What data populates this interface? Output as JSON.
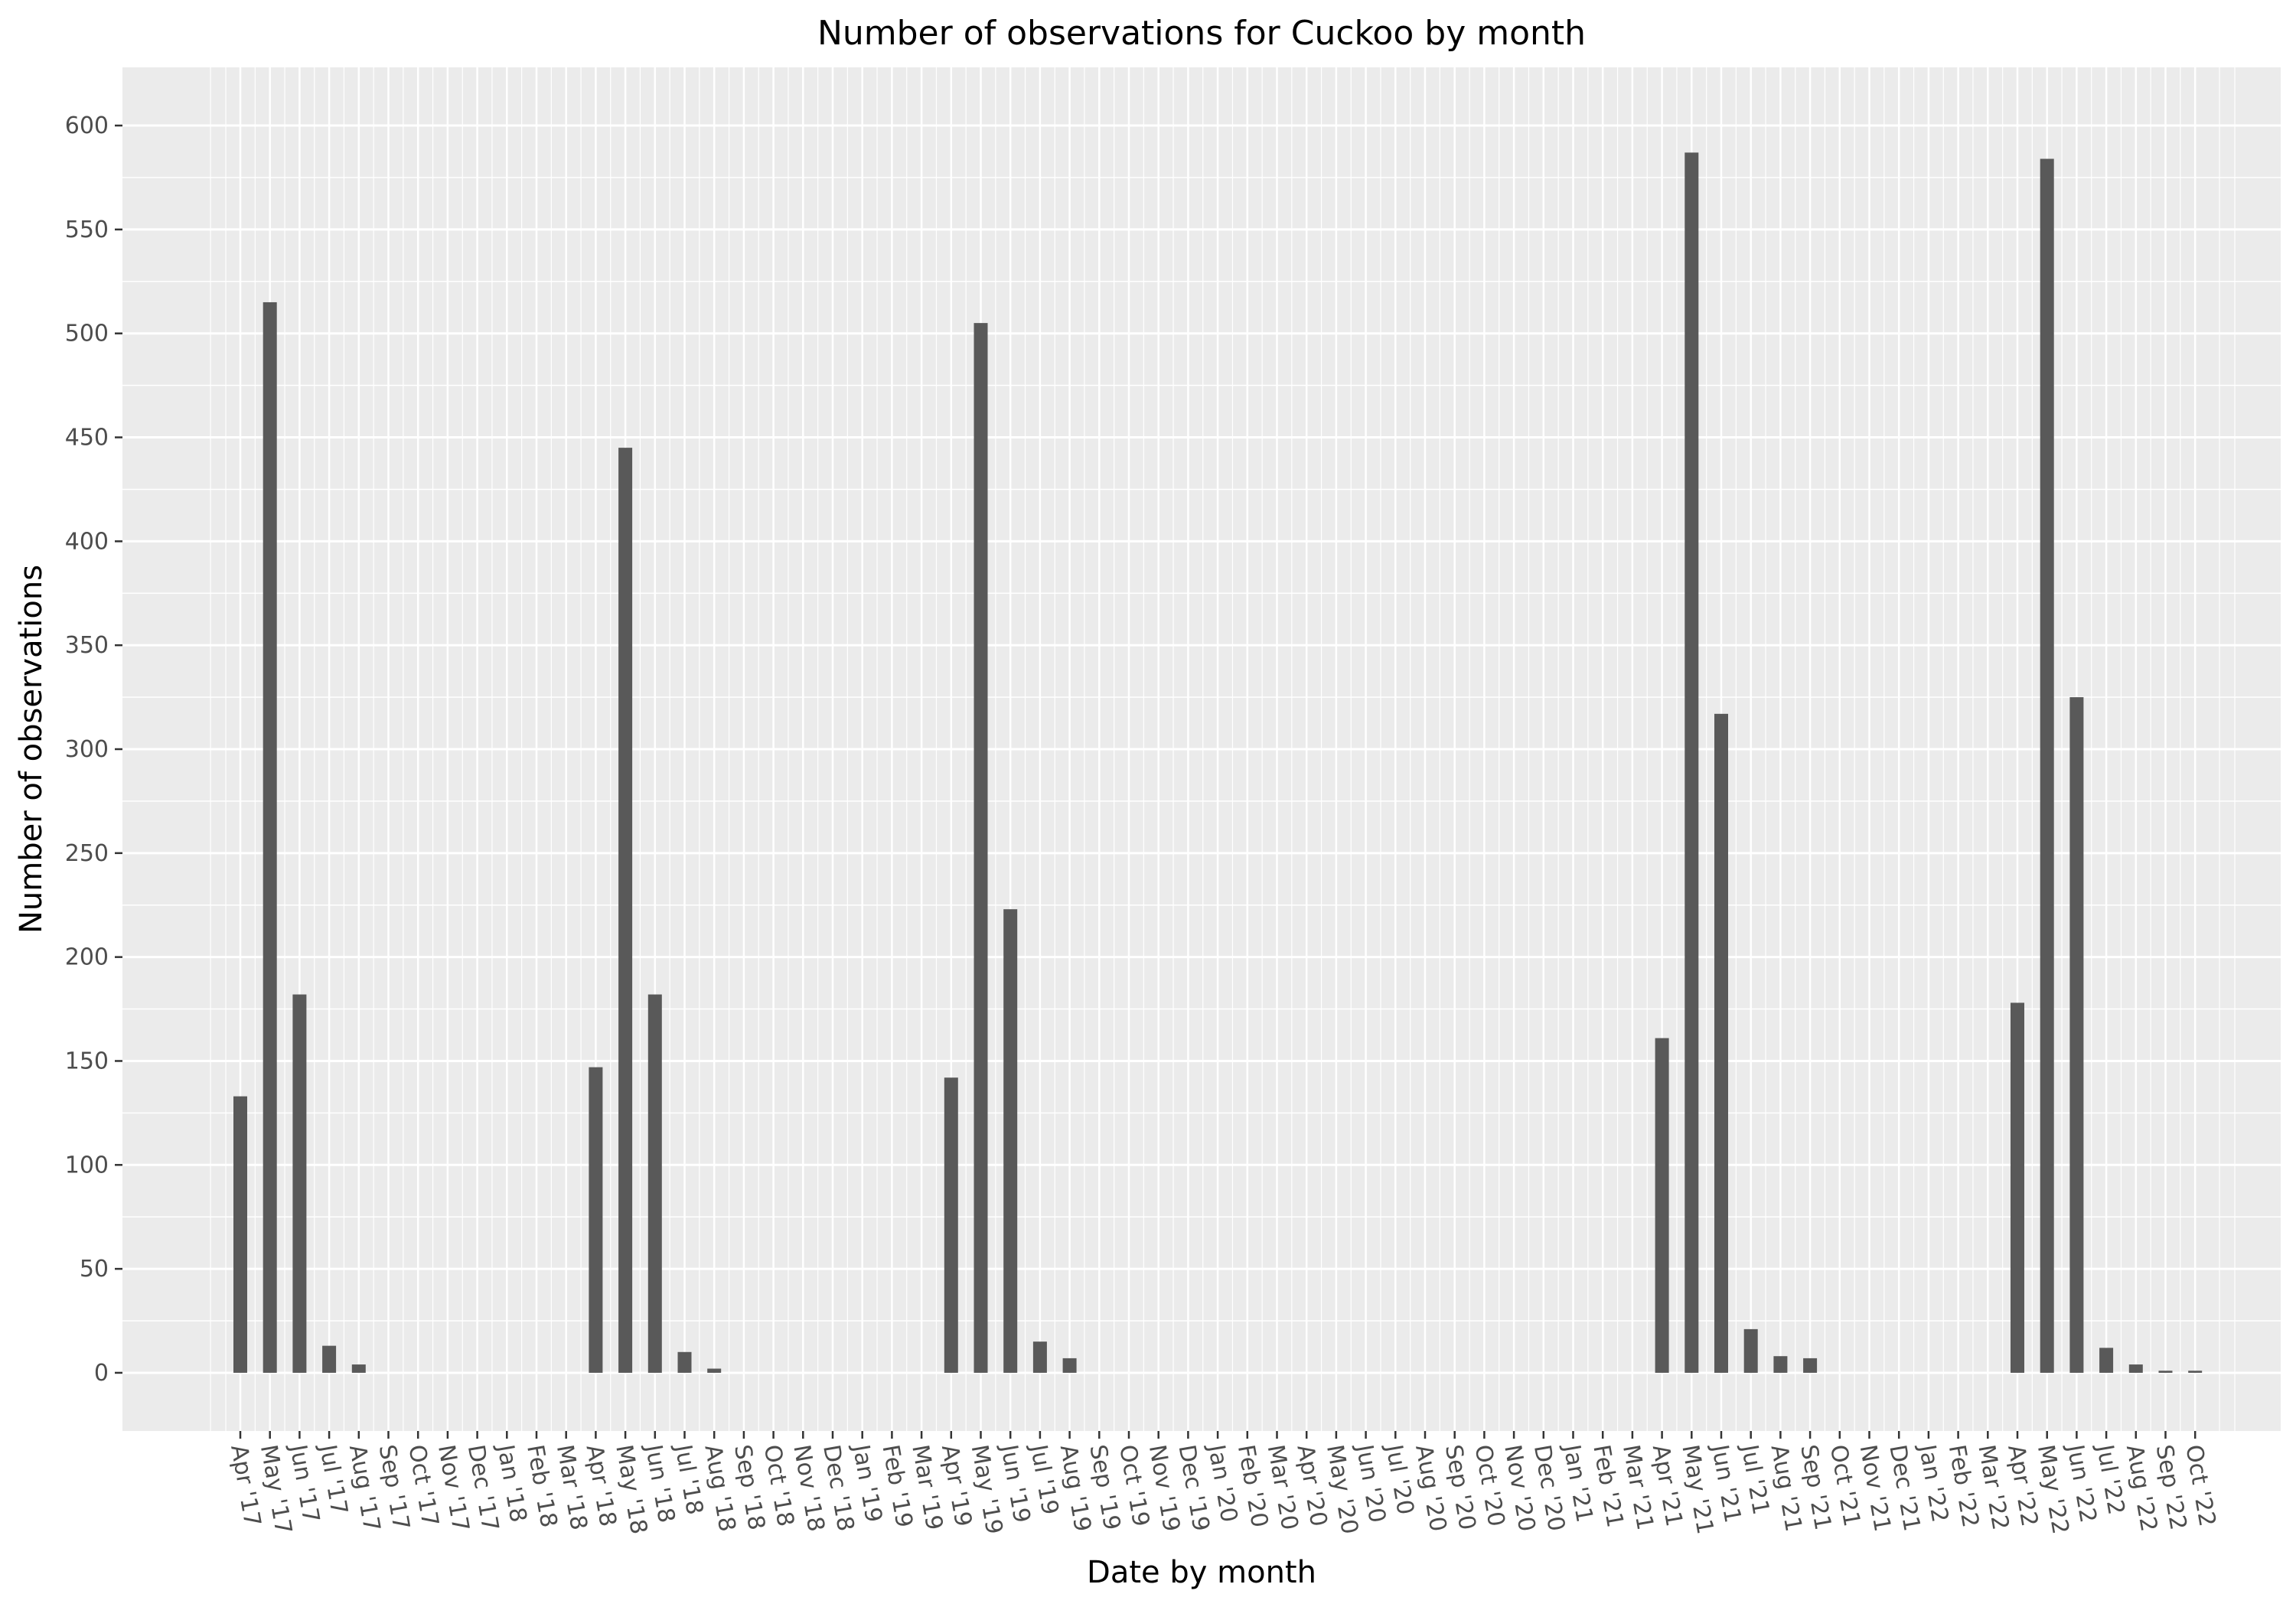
{
  "chart_data": {
    "type": "bar",
    "title": "Number of observations for Cuckoo by month",
    "xlabel": "Date by month",
    "ylabel": "Number of observations",
    "ylim": [
      -28,
      628
    ],
    "yticks": [
      0,
      50,
      100,
      150,
      200,
      250,
      300,
      350,
      400,
      450,
      500,
      550,
      600
    ],
    "grid": true,
    "legend": "none",
    "colors": {
      "bar": "#595959",
      "panel": "#ebebeb",
      "grid": "#ffffff"
    },
    "categories": [
      "Apr '17",
      "May '17",
      "Jun '17",
      "Jul '17",
      "Aug '17",
      "Sep '17",
      "Oct '17",
      "Nov '17",
      "Dec '17",
      "Jan '18",
      "Feb '18",
      "Mar '18",
      "Apr '18",
      "May '18",
      "Jun '18",
      "Jul '18",
      "Aug '18",
      "Sep '18",
      "Oct '18",
      "Nov '18",
      "Dec '18",
      "Jan '19",
      "Feb '19",
      "Mar '19",
      "Apr '19",
      "May '19",
      "Jun '19",
      "Jul '19",
      "Aug '19",
      "Sep '19",
      "Oct '19",
      "Nov '19",
      "Dec '19",
      "Jan '20",
      "Feb '20",
      "Mar '20",
      "Apr '20",
      "May '20",
      "Jun '20",
      "Jul '20",
      "Aug '20",
      "Sep '20",
      "Oct '20",
      "Nov '20",
      "Dec '20",
      "Jan '21",
      "Feb '21",
      "Mar '21",
      "Apr '21",
      "May '21",
      "Jun '21",
      "Jul '21",
      "Aug '21",
      "Sep '21",
      "Oct '21",
      "Nov '21",
      "Dec '21",
      "Jan '22",
      "Feb '22",
      "Mar '22",
      "Apr '22",
      "May '22",
      "Jun '22",
      "Jul '22",
      "Aug '22",
      "Sep '22",
      "Oct '22"
    ],
    "values": [
      133,
      515,
      182,
      13,
      4,
      0,
      0,
      0,
      0,
      0,
      0,
      0,
      147,
      445,
      182,
      10,
      2,
      0,
      0,
      0,
      0,
      0,
      0,
      0,
      142,
      505,
      223,
      15,
      7,
      0,
      0,
      0,
      0,
      0,
      0,
      0,
      0,
      0,
      0,
      0,
      0,
      0,
      0,
      0,
      0,
      0,
      0,
      0,
      161,
      587,
      317,
      21,
      8,
      7,
      0,
      0,
      0,
      0,
      0,
      0,
      178,
      584,
      325,
      12,
      4,
      1,
      1
    ]
  }
}
